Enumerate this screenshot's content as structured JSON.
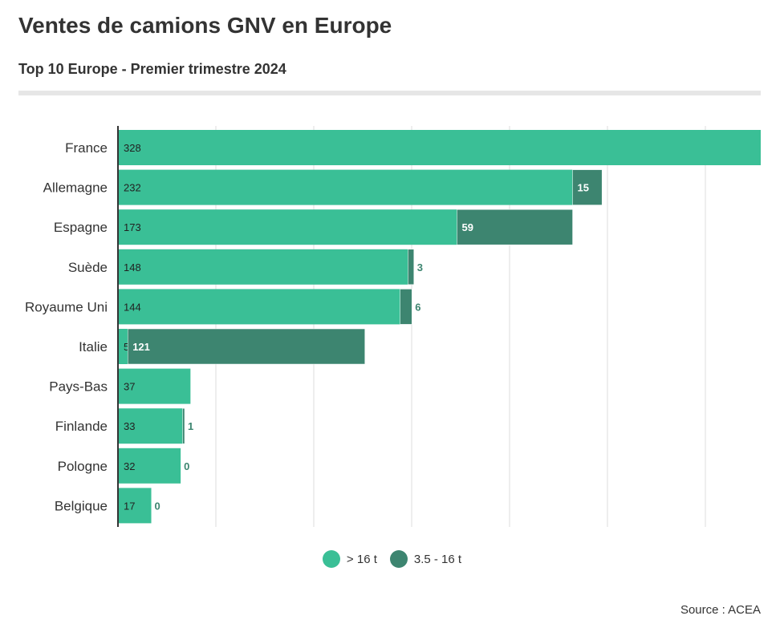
{
  "title": "Ventes de camions GNV en Europe",
  "subtitle": "Top 10 Europe - Premier trimestre 2024",
  "source": "Source : ACEA",
  "colors": {
    "heavy": "#3abf96",
    "medium": "#3d8570",
    "grid": "#dddddd",
    "axis": "#333333"
  },
  "chart_data": {
    "type": "bar",
    "orientation": "horizontal",
    "stacked": true,
    "categories": [
      "France",
      "Allemagne",
      "Espagne",
      "Suède",
      "Royaume Uni",
      "Italie",
      "Pays-Bas",
      "Finlande",
      "Pologne",
      "Belgique"
    ],
    "series": [
      {
        "name": "> 16 t",
        "values": [
          328,
          232,
          173,
          148,
          144,
          5,
          37,
          33,
          32,
          17
        ]
      },
      {
        "name": "3.5 - 16 t",
        "values": [
          0,
          15,
          59,
          3,
          6,
          121,
          0,
          1,
          0,
          0
        ]
      }
    ],
    "xlim": [
      0,
      328
    ],
    "grid": true,
    "legend": "bottom-center"
  }
}
